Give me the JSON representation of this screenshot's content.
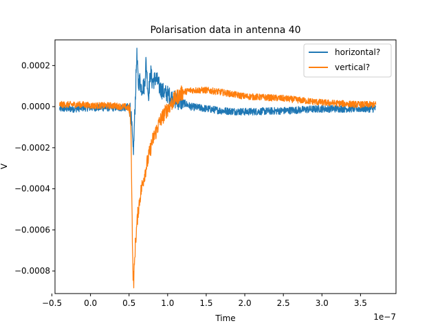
{
  "chart_data": {
    "type": "line",
    "title": "Polarisation data in antenna 40",
    "xlabel": "Time",
    "ylabel": "V",
    "x_offset_label": "1e−7",
    "xlim": [
      -0.46,
      3.96
    ],
    "ylim": [
      -0.00091,
      0.000325
    ],
    "x_ticks": [
      {
        "value": -0.5,
        "label": "−0.5"
      },
      {
        "value": 0.0,
        "label": "0.0"
      },
      {
        "value": 0.5,
        "label": "0.5"
      },
      {
        "value": 1.0,
        "label": "1.0"
      },
      {
        "value": 1.5,
        "label": "1.5"
      },
      {
        "value": 2.0,
        "label": "2.0"
      },
      {
        "value": 2.5,
        "label": "2.5"
      },
      {
        "value": 3.0,
        "label": "3.0"
      },
      {
        "value": 3.5,
        "label": "3.5"
      }
    ],
    "y_ticks": [
      {
        "value": 0.0002,
        "label": "0.0002"
      },
      {
        "value": 0.0,
        "label": "0.0000"
      },
      {
        "value": -0.0002,
        "label": "−0.0002"
      },
      {
        "value": -0.0004,
        "label": "−0.0004"
      },
      {
        "value": -0.0006,
        "label": "−0.0006"
      },
      {
        "value": -0.0008,
        "label": "−0.0008"
      }
    ],
    "legend_position": "top-right",
    "grid": false,
    "series": [
      {
        "name": "horizontal?",
        "color": "#1f77b4",
        "x": [
          -0.4,
          -0.3,
          -0.2,
          -0.1,
          0.0,
          0.1,
          0.2,
          0.3,
          0.4,
          0.45,
          0.5,
          0.52,
          0.54,
          0.55,
          0.56,
          0.57,
          0.58,
          0.59,
          0.6,
          0.62,
          0.64,
          0.66,
          0.68,
          0.7,
          0.72,
          0.75,
          0.78,
          0.8,
          0.85,
          0.9,
          0.95,
          1.0,
          1.1,
          1.2,
          1.3,
          1.5,
          1.7,
          2.0,
          2.5,
          3.0,
          3.5,
          3.7
        ],
        "y": [
          -1e-05,
          -1e-05,
          -1e-05,
          -5e-06,
          -5e-06,
          -5e-06,
          -5e-06,
          -5e-06,
          -5e-06,
          -5e-06,
          0.0,
          -2e-05,
          -0.00013,
          -0.00021,
          -0.0002,
          -7e-05,
          2e-05,
          0.00014,
          0.00026,
          0.00011,
          0.00013,
          9e-05,
          0.0001,
          0.0001,
          0.00022,
          5e-05,
          0.00017,
          0.00012,
          0.00014,
          9e-05,
          7e-05,
          6e-05,
          3e-05,
          2e-05,
          0.0,
          -1e-05,
          -2e-05,
          -2.5e-05,
          -2e-05,
          -1e-05,
          -1e-05,
          -1e-05
        ],
        "noise": 1.8e-05
      },
      {
        "name": "vertical?",
        "color": "#ff7f0e",
        "x": [
          -0.4,
          -0.3,
          -0.2,
          -0.1,
          0.0,
          0.1,
          0.2,
          0.3,
          0.4,
          0.45,
          0.5,
          0.52,
          0.53,
          0.54,
          0.55,
          0.56,
          0.57,
          0.58,
          0.6,
          0.62,
          0.65,
          0.7,
          0.75,
          0.8,
          0.9,
          1.0,
          1.1,
          1.2,
          1.3,
          1.5,
          1.7,
          2.0,
          2.5,
          3.0,
          3.5,
          3.7
        ],
        "y": [
          1e-05,
          1e-05,
          1e-05,
          1e-05,
          5e-06,
          5e-06,
          5e-06,
          5e-06,
          0.0,
          0.0,
          -1e-05,
          -5e-05,
          -0.00025,
          -0.00055,
          -0.00081,
          -0.00085,
          -0.00077,
          -0.00068,
          -0.00058,
          -0.0005,
          -0.00042,
          -0.00033,
          -0.00025,
          -0.00017,
          -7e-05,
          -1e-05,
          4e-05,
          7e-05,
          8e-05,
          8e-05,
          7e-05,
          5e-05,
          4e-05,
          2e-05,
          1e-05,
          1e-05
        ],
        "noise": 1.6e-05
      }
    ]
  }
}
